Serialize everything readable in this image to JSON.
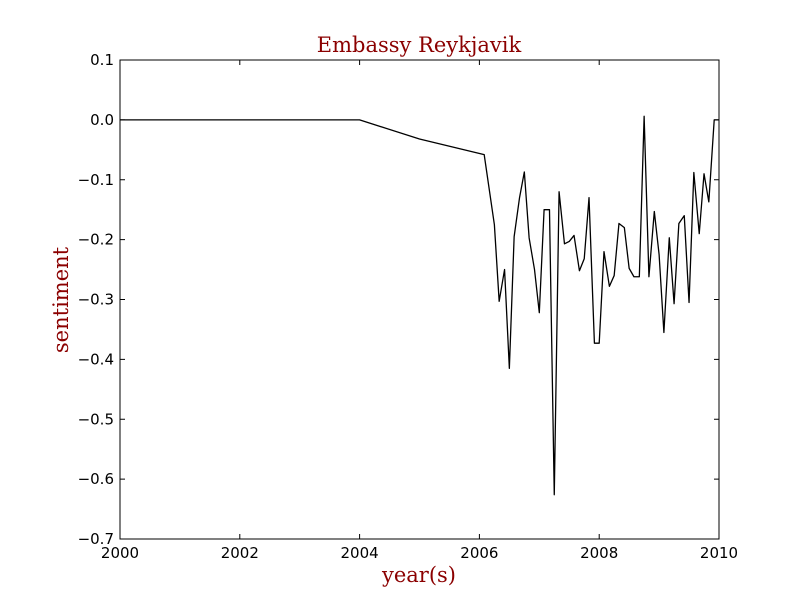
{
  "chart_data": {
    "type": "line",
    "title": "Embassy Reykjavik",
    "xlabel": "year(s)",
    "ylabel": "sentiment",
    "xlim": [
      2000,
      2010
    ],
    "ylim": [
      -0.7,
      0.1
    ],
    "x_ticks": [
      2000,
      2002,
      2004,
      2006,
      2008,
      2010
    ],
    "y_ticks": [
      0.1,
      0.0,
      -0.1,
      -0.2,
      -0.3,
      -0.4,
      -0.5,
      -0.6,
      -0.7
    ],
    "x_tick_labels": [
      "2000",
      "2002",
      "2004",
      "2006",
      "2008",
      "2010"
    ],
    "y_tick_labels": [
      "0.1",
      "0.0",
      "−0.1",
      "−0.2",
      "−0.3",
      "−0.4",
      "−0.5",
      "−0.6",
      "−0.7"
    ],
    "grid": false,
    "line_color": "#000000",
    "title_color": "#8b0000",
    "label_color": "#8b0000",
    "series": [
      {
        "x": [
          2000.0,
          2004.0,
          2005.0,
          2006.08,
          2006.25,
          2006.33,
          2006.42,
          2006.5,
          2006.58,
          2006.67,
          2006.75,
          2006.83,
          2006.92,
          2007.0,
          2007.08,
          2007.17,
          2007.25,
          2007.33,
          2007.42,
          2007.5,
          2007.58,
          2007.67,
          2007.75,
          2007.83,
          2007.92,
          2008.0,
          2008.08,
          2008.17,
          2008.25,
          2008.33,
          2008.42,
          2008.5,
          2008.58,
          2008.67,
          2008.75,
          2008.83,
          2008.92,
          2009.0,
          2009.08,
          2009.17,
          2009.25,
          2009.33,
          2009.42,
          2009.5,
          2009.58,
          2009.67,
          2009.75,
          2009.83,
          2009.92,
          2010.0
        ],
        "y": [
          0.0,
          0.0,
          -0.032,
          -0.058,
          -0.175,
          -0.303,
          -0.25,
          -0.415,
          -0.195,
          -0.13,
          -0.087,
          -0.197,
          -0.25,
          -0.322,
          -0.15,
          -0.15,
          -0.626,
          -0.12,
          -0.207,
          -0.203,
          -0.193,
          -0.252,
          -0.232,
          -0.13,
          -0.373,
          -0.373,
          -0.22,
          -0.278,
          -0.26,
          -0.173,
          -0.18,
          -0.248,
          -0.262,
          -0.262,
          0.006,
          -0.262,
          -0.153,
          -0.225,
          -0.355,
          -0.197,
          -0.307,
          -0.173,
          -0.16,
          -0.305,
          -0.088,
          -0.19,
          -0.09,
          -0.137,
          0.0,
          0.0
        ]
      }
    ]
  }
}
